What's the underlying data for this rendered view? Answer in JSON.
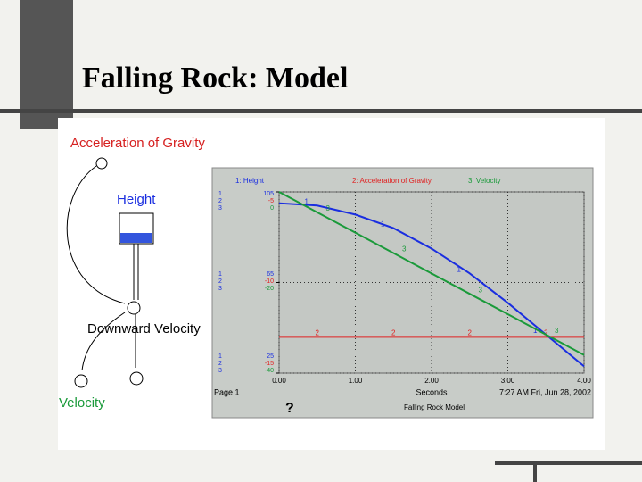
{
  "slide_title": "Falling Rock: Model",
  "diagram": {
    "gravity": "Acceleration of Gravity",
    "height": "Height",
    "downward_velocity": "Downward Velocity",
    "velocity": "Velocity"
  },
  "graph_footer": {
    "page": "Page 1",
    "timestamp": "7:27 AM  Fri, Jun 28, 2002",
    "model": "Falling Rock Model",
    "help": "?"
  },
  "chart_data": {
    "type": "line",
    "x_label": "Seconds",
    "x": [
      0,
      0.5,
      1,
      1.5,
      2,
      2.5,
      3,
      3.5,
      4
    ],
    "xlim": [
      0,
      4
    ],
    "xticks": [
      {
        "value": 0,
        "label": "0.00"
      },
      {
        "value": 1,
        "label": "1.00"
      },
      {
        "value": 2,
        "label": "2.00"
      },
      {
        "value": 3,
        "label": "3.00"
      },
      {
        "value": 4,
        "label": "4.00"
      }
    ],
    "grid": true,
    "series": [
      {
        "id": "1",
        "name": "Height",
        "color": "#1a2ee0",
        "ylim": [
          25,
          105
        ],
        "yticks": [
          105,
          65,
          25
        ],
        "values": [
          100,
          99,
          95,
          89,
          80,
          69,
          56,
          42,
          28
        ]
      },
      {
        "id": "2",
        "name": "Acceleration of Gravity",
        "color": "#e02020",
        "ylim": [
          -15,
          -5
        ],
        "yticks": [
          -5,
          -10,
          -15
        ],
        "values": [
          -13,
          -13,
          -13,
          -13,
          -13,
          -13,
          -13,
          -13,
          -13
        ]
      },
      {
        "id": "3",
        "name": "Velocity",
        "color": "#1a9a3a",
        "ylim": [
          -40,
          0
        ],
        "yticks": [
          0,
          -20,
          -40
        ],
        "values": [
          0,
          -4.5,
          -9,
          -13.5,
          -18,
          -22.5,
          -27,
          -31.5,
          -36
        ]
      }
    ]
  }
}
